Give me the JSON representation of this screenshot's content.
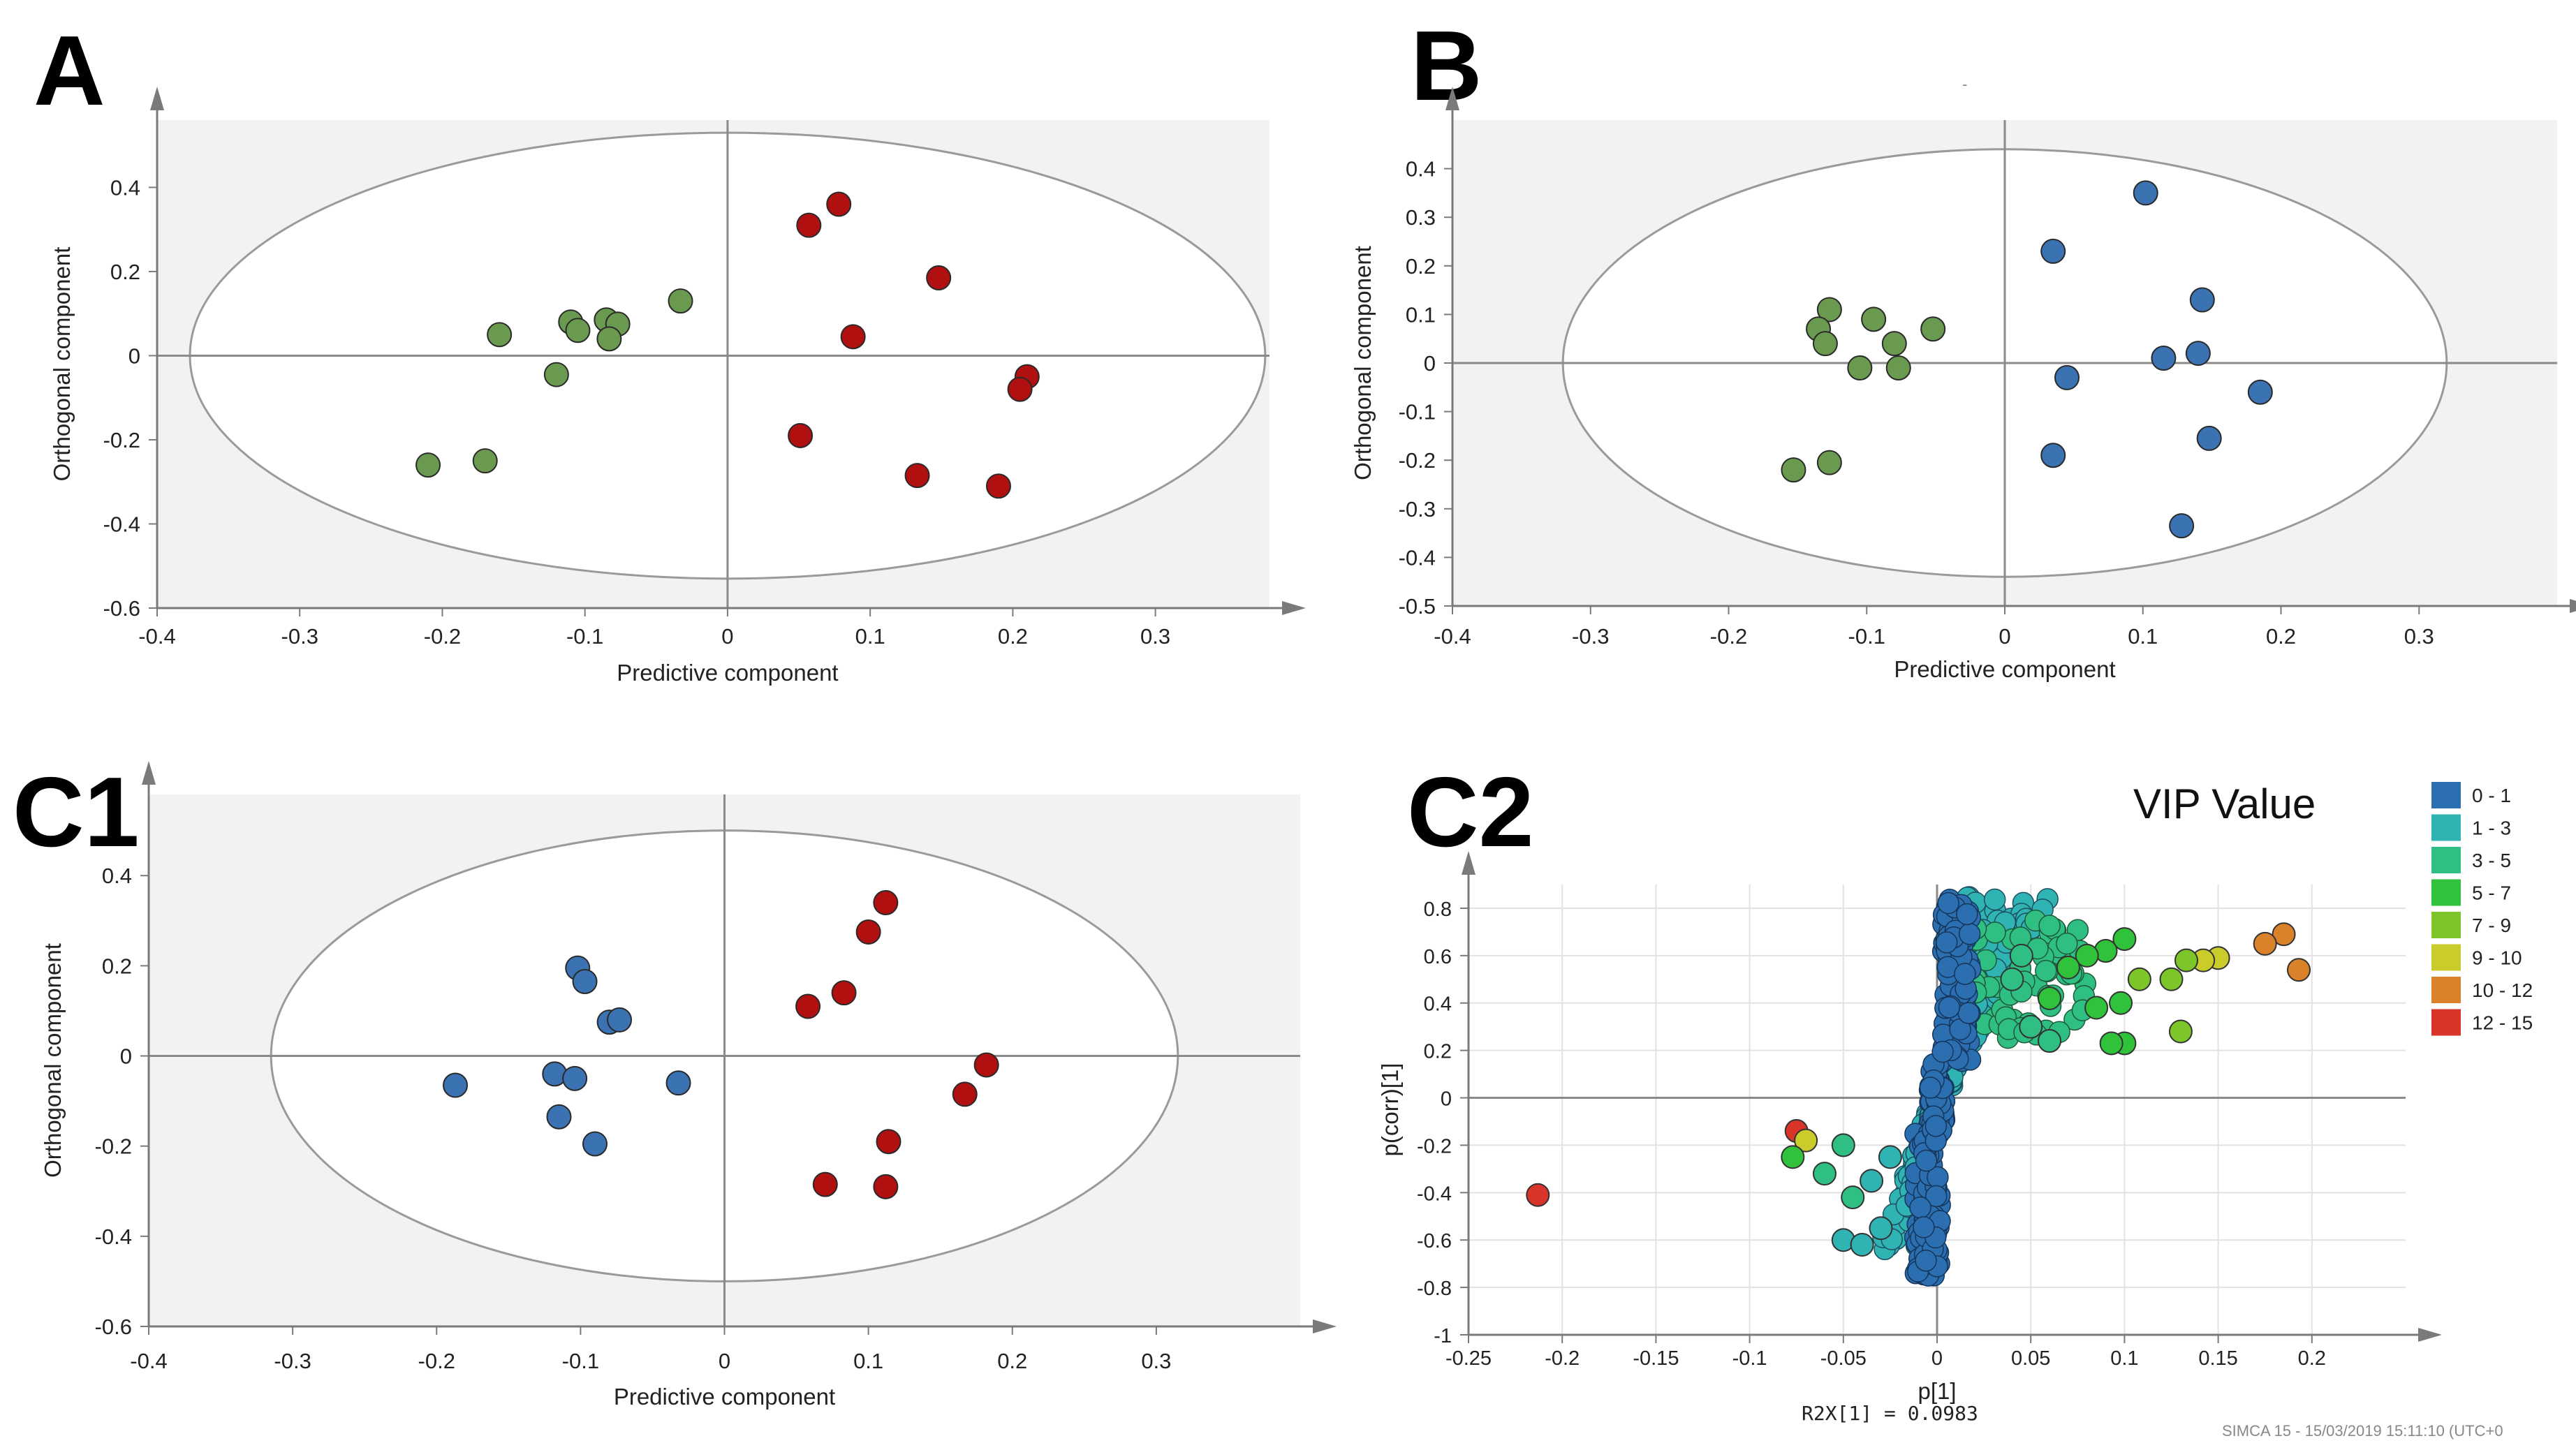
{
  "panels": {
    "A": {
      "letter": "A"
    },
    "B": {
      "letter": "B",
      "stray_mark": "-"
    },
    "C1": {
      "letter": "C1"
    },
    "C2": {
      "letter": "C2"
    }
  },
  "c2_extra": {
    "legend_title": "VIP Value",
    "r2x_text": "R2X[1] = 0.0983",
    "footer": "SIMCA 15 - 15/03/2019 15:11:10 (UTC+0"
  },
  "colors": {
    "green": "#6a9a4f",
    "red": "#b01010",
    "blue": "#3a72b2",
    "shaded_background": "#f2f2f2"
  },
  "chart_data": [
    {
      "id": "A",
      "type": "scatter",
      "xlabel": "Predictive component",
      "ylabel": "Orthogonal component",
      "xlim": [
        -0.4,
        0.38
      ],
      "ylim": [
        -0.6,
        0.56
      ],
      "xticks": [
        -0.4,
        -0.3,
        -0.2,
        -0.1,
        0,
        0.1,
        0.2,
        0.3
      ],
      "xtick_labels": [
        "-0.4",
        "-0.3",
        "-0.2",
        "-0.1",
        "0",
        "0.1",
        "0.2",
        "0.3"
      ],
      "yticks": [
        -0.6,
        -0.4,
        -0.2,
        0,
        0.2,
        0.4
      ],
      "ytick_labels": [
        "-0.6",
        "-0.4",
        "-0.2",
        "0",
        "0.2",
        "0.4"
      ],
      "ellipse": {
        "rx": 0.377,
        "ry": 0.53
      },
      "series": [
        {
          "color": "#6a9a4f",
          "points": [
            [
              -0.16,
              0.05
            ],
            [
              -0.11,
              0.08
            ],
            [
              -0.105,
              0.06
            ],
            [
              -0.085,
              0.085
            ],
            [
              -0.077,
              0.075
            ],
            [
              -0.083,
              0.04
            ],
            [
              -0.033,
              0.13
            ],
            [
              -0.12,
              -0.045
            ],
            [
              -0.21,
              -0.26
            ],
            [
              -0.17,
              -0.25
            ]
          ]
        },
        {
          "color": "#b01010",
          "points": [
            [
              0.057,
              0.31
            ],
            [
              0.078,
              0.36
            ],
            [
              0.148,
              0.185
            ],
            [
              0.088,
              0.045
            ],
            [
              0.21,
              -0.05
            ],
            [
              0.205,
              -0.08
            ],
            [
              0.051,
              -0.19
            ],
            [
              0.133,
              -0.285
            ],
            [
              0.19,
              -0.31
            ]
          ]
        }
      ]
    },
    {
      "id": "B",
      "type": "scatter",
      "xlabel": "Predictive component",
      "ylabel": "Orthogonal component",
      "xlim": [
        -0.4,
        0.4
      ],
      "ylim": [
        -0.5,
        0.5
      ],
      "xticks": [
        -0.4,
        -0.3,
        -0.2,
        -0.1,
        0,
        0.1,
        0.2,
        0.3
      ],
      "xtick_labels": [
        "-0.4",
        "-0.3",
        "-0.2",
        "-0.1",
        "0",
        "0.1",
        "0.2",
        "0.3"
      ],
      "yticks": [
        -0.5,
        -0.4,
        -0.3,
        -0.2,
        -0.1,
        0,
        0.1,
        0.2,
        0.3,
        0.4
      ],
      "ytick_labels": [
        "-0.5",
        "-0.4",
        "-0.3",
        "-0.2",
        "-0.1",
        "0",
        "0.1",
        "0.2",
        "0.3",
        "0.4"
      ],
      "ellipse": {
        "rx": 0.32,
        "ry": 0.44
      },
      "series": [
        {
          "color": "#6a9a4f",
          "points": [
            [
              -0.127,
              0.11
            ],
            [
              -0.135,
              0.07
            ],
            [
              -0.13,
              0.04
            ],
            [
              -0.095,
              0.09
            ],
            [
              -0.08,
              0.04
            ],
            [
              -0.052,
              0.07
            ],
            [
              -0.105,
              -0.01
            ],
            [
              -0.077,
              -0.01
            ],
            [
              -0.127,
              -0.205
            ],
            [
              -0.153,
              -0.22
            ]
          ]
        },
        {
          "color": "#3a72b2",
          "points": [
            [
              0.102,
              0.35
            ],
            [
              0.035,
              0.23
            ],
            [
              0.143,
              0.13
            ],
            [
              0.14,
              0.02
            ],
            [
              0.115,
              0.01
            ],
            [
              0.045,
              -0.03
            ],
            [
              0.185,
              -0.06
            ],
            [
              0.035,
              -0.19
            ],
            [
              0.148,
              -0.155
            ],
            [
              0.128,
              -0.335
            ]
          ]
        }
      ]
    },
    {
      "id": "C1",
      "type": "scatter",
      "xlabel": "Predictive component",
      "ylabel": "Orthogonal component",
      "xlim": [
        -0.4,
        0.4
      ],
      "ylim": [
        -0.6,
        0.58
      ],
      "xticks": [
        -0.4,
        -0.3,
        -0.2,
        -0.1,
        0,
        0.1,
        0.2,
        0.3
      ],
      "xtick_labels": [
        "-0.4",
        "-0.3",
        "-0.2",
        "-0.1",
        "0",
        "0.1",
        "0.2",
        "0.3"
      ],
      "yticks": [
        -0.6,
        -0.4,
        -0.2,
        0,
        0.2,
        0.4
      ],
      "ytick_labels": [
        "-0.6",
        "-0.4",
        "-0.2",
        "0",
        "0.2",
        "0.4"
      ],
      "ellipse": {
        "rx": 0.315,
        "ry": 0.5
      },
      "series": [
        {
          "color": "#3a72b2",
          "points": [
            [
              -0.102,
              0.195
            ],
            [
              -0.097,
              0.165
            ],
            [
              -0.08,
              0.075
            ],
            [
              -0.073,
              0.08
            ],
            [
              -0.187,
              -0.065
            ],
            [
              -0.118,
              -0.04
            ],
            [
              -0.104,
              -0.05
            ],
            [
              -0.032,
              -0.06
            ],
            [
              -0.115,
              -0.135
            ],
            [
              -0.09,
              -0.195
            ]
          ]
        },
        {
          "color": "#b01010",
          "points": [
            [
              0.112,
              0.34
            ],
            [
              0.1,
              0.275
            ],
            [
              0.083,
              0.14
            ],
            [
              0.058,
              0.11
            ],
            [
              0.182,
              -0.02
            ],
            [
              0.167,
              -0.085
            ],
            [
              0.114,
              -0.19
            ],
            [
              0.07,
              -0.285
            ],
            [
              0.112,
              -0.29
            ]
          ]
        }
      ]
    },
    {
      "id": "C2",
      "type": "scatter",
      "xlabel": "p[1]",
      "ylabel": "p(corr)[1]",
      "xlim": [
        -0.25,
        0.25
      ],
      "ylim": [
        -1,
        0.9
      ],
      "grid": true,
      "xticks": [
        -0.25,
        -0.2,
        -0.15,
        -0.1,
        -0.05,
        0,
        0.05,
        0.1,
        0.15,
        0.2
      ],
      "xtick_labels": [
        "-0.25",
        "-0.2",
        "-0.15",
        "-0.1",
        "-0.05",
        "0",
        "0.05",
        "0.1",
        "0.15",
        "0.2"
      ],
      "yticks": [
        -1,
        -0.8,
        -0.6,
        -0.4,
        -0.2,
        0,
        0.2,
        0.4,
        0.6,
        0.8
      ],
      "ytick_labels": [
        "-1",
        "-0.8",
        "-0.6",
        "-0.4",
        "-0.2",
        "0",
        "0.2",
        "0.4",
        "0.6",
        "0.8"
      ],
      "legend": {
        "position": "right",
        "items": [
          {
            "label": "0 - 1",
            "color": "#2c6fb0"
          },
          {
            "label": "1 - 3",
            "color": "#2fb3b3"
          },
          {
            "label": "3 - 5",
            "color": "#2fbf82"
          },
          {
            "label": "5 - 7",
            "color": "#2fc23a"
          },
          {
            "label": "7 - 9",
            "color": "#7cc62a"
          },
          {
            "label": "9 - 10",
            "color": "#c9cc2a"
          },
          {
            "label": "10 - 12",
            "color": "#d9822a"
          },
          {
            "label": "12 - 15",
            "color": "#d9342a"
          }
        ]
      },
      "highlighted_points": [
        {
          "x": -0.213,
          "y": -0.41,
          "range": "12 - 15"
        },
        {
          "x": -0.075,
          "y": -0.14,
          "range": "12 - 15"
        },
        {
          "x": -0.07,
          "y": -0.18,
          "range": "9 - 10"
        },
        {
          "x": -0.077,
          "y": -0.25,
          "range": "5 - 7"
        },
        {
          "x": 0.185,
          "y": 0.69,
          "range": "10 - 12"
        },
        {
          "x": 0.175,
          "y": 0.65,
          "range": "10 - 12"
        },
        {
          "x": 0.193,
          "y": 0.54,
          "range": "10 - 12"
        },
        {
          "x": 0.15,
          "y": 0.59,
          "range": "9 - 10"
        },
        {
          "x": 0.142,
          "y": 0.58,
          "range": "9 - 10"
        },
        {
          "x": 0.133,
          "y": 0.58,
          "range": "7 - 9"
        },
        {
          "x": 0.125,
          "y": 0.5,
          "range": "7 - 9"
        },
        {
          "x": 0.108,
          "y": 0.5,
          "range": "7 - 9"
        },
        {
          "x": 0.13,
          "y": 0.28,
          "range": "7 - 9"
        },
        {
          "x": 0.1,
          "y": 0.67,
          "range": "5 - 7"
        },
        {
          "x": 0.09,
          "y": 0.62,
          "range": "5 - 7"
        },
        {
          "x": 0.08,
          "y": 0.6,
          "range": "5 - 7"
        },
        {
          "x": 0.1,
          "y": 0.23,
          "range": "5 - 7"
        },
        {
          "x": 0.093,
          "y": 0.23,
          "range": "5 - 7"
        },
        {
          "x": 0.098,
          "y": 0.4,
          "range": "5 - 7"
        },
        {
          "x": 0.085,
          "y": 0.38,
          "range": "5 - 7"
        },
        {
          "x": 0.07,
          "y": 0.55,
          "range": "5 - 7"
        },
        {
          "x": 0.06,
          "y": 0.42,
          "range": "5 - 7"
        },
        {
          "x": 0.05,
          "y": 0.3,
          "range": "3 - 5"
        },
        {
          "x": 0.06,
          "y": 0.24,
          "range": "3 - 5"
        },
        {
          "x": 0.045,
          "y": 0.6,
          "range": "3 - 5"
        },
        {
          "x": 0.04,
          "y": 0.5,
          "range": "3 - 5"
        },
        {
          "x": -0.05,
          "y": -0.2,
          "range": "3 - 5"
        },
        {
          "x": -0.06,
          "y": -0.32,
          "range": "3 - 5"
        },
        {
          "x": -0.045,
          "y": -0.42,
          "range": "3 - 5"
        },
        {
          "x": -0.05,
          "y": -0.6,
          "range": "1 - 3"
        },
        {
          "x": -0.04,
          "y": -0.62,
          "range": "1 - 3"
        },
        {
          "x": -0.03,
          "y": -0.55,
          "range": "1 - 3"
        },
        {
          "x": -0.035,
          "y": -0.35,
          "range": "1 - 3"
        },
        {
          "x": -0.025,
          "y": -0.25,
          "range": "1 - 3"
        }
      ]
    }
  ]
}
